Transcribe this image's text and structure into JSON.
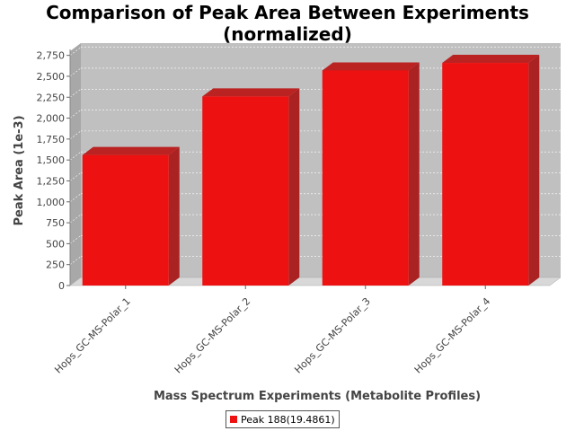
{
  "chart_data": {
    "type": "bar",
    "title_line1": "Comparison of Peak Area Between Experiments",
    "title_line2": "(normalized)",
    "xlabel": "Mass Spectrum Experiments (Metabolite Profiles)",
    "ylabel": "Peak Area (1e-3)",
    "categories": [
      "Hops_GC-MS-Polar_1",
      "Hops_GC-MS-Polar_2",
      "Hops_GC-MS-Polar_3",
      "Hops_GC-MS-Polar_4"
    ],
    "series": [
      {
        "name": "Peak 188(19.4861)",
        "values": [
          1560,
          2260,
          2570,
          2660
        ],
        "color": "#ee1111"
      }
    ],
    "ylim": [
      0,
      2800
    ],
    "yticks": [
      0,
      250,
      500,
      750,
      1000,
      1250,
      1500,
      1750,
      2000,
      2250,
      2500,
      2750
    ],
    "ytick_labels": [
      "0",
      "250",
      "500",
      "750",
      "1,000",
      "1,250",
      "1,500",
      "1,750",
      "2,000",
      "2,250",
      "2,500",
      "2,750"
    ],
    "grid": true,
    "legend_position": "bottom",
    "colors": {
      "plot_background": "#c0c0c0",
      "bar": "#ee1111",
      "bar_side": "#aa2222",
      "bar_top": "#bb2222"
    }
  }
}
